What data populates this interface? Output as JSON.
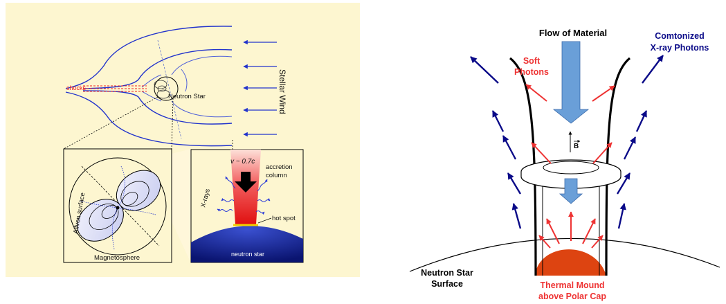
{
  "left_panel": {
    "stellar_wind": "Stellar Wind",
    "neutron_star": "Neutron Star",
    "shocks": "shocks",
    "alfven_surface": "Alfven surface",
    "magnetosphere": "Magnetosphere",
    "velocity": "v ~ 0.7c",
    "accretion_line1": "accretion",
    "accretion_line2": "column",
    "xrays": "X-rays",
    "hot_spot": "hot spot",
    "neutron_star_lower": "neutron star"
  },
  "right_panel": {
    "flow": "Flow of Material",
    "comptonized_line1": "Comtonized",
    "comptonized_line2": "X-ray Photons",
    "soft_line1": "Soft",
    "soft_line2": "Photons",
    "b_field": "B",
    "ns_surface_line1": "Neutron Star",
    "ns_surface_line2": "Surface",
    "mound_line1": "Thermal Mound",
    "mound_line2": "above Polar Cap"
  },
  "colors": {
    "background_panel": "#fdf6d0",
    "field_lines": "#2233cc",
    "soft_photons": "#ee3333",
    "comptonized": "#0a0a88",
    "column_arrow": "#6a9fd8",
    "mound": "#dd4411",
    "neutron_star_fill": "#1a2a9a",
    "accretion_red": "#e02020"
  }
}
